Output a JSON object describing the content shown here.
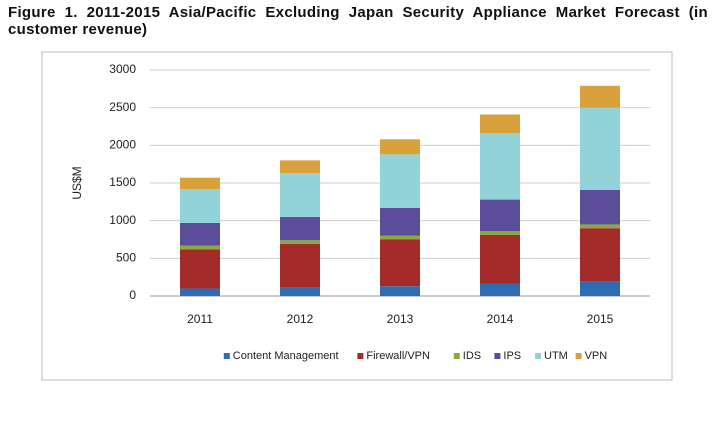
{
  "chart_data": {
    "type": "stacked_bar",
    "title": "Figure 1. 2011-2015 Asia/Pacific Excluding Japan Security Appliance Market Forecast (in customer revenue)",
    "y_label": "US$M",
    "categories": [
      "2011",
      "2012",
      "2013",
      "2014",
      "2015"
    ],
    "series": [
      {
        "name": "Content Management",
        "color": "#2f6db3",
        "values": [
          100,
          110,
          130,
          160,
          190
        ]
      },
      {
        "name": "Firewall/VPN",
        "color": "#a52a2a",
        "values": [
          520,
          580,
          620,
          650,
          710
        ]
      },
      {
        "name": "IDS",
        "color": "#8aab3c",
        "values": [
          50,
          50,
          50,
          50,
          50
        ]
      },
      {
        "name": "IPS",
        "color": "#5c4d9a",
        "values": [
          300,
          310,
          370,
          420,
          460
        ]
      },
      {
        "name": "UTM",
        "color": "#92d3d9",
        "values": [
          450,
          580,
          710,
          880,
          1090
        ]
      },
      {
        "name": "VPN",
        "color": "#d9a13c",
        "values": [
          150,
          170,
          200,
          250,
          290
        ]
      }
    ],
    "ylim": [
      0,
      3000
    ],
    "yticks": [
      0,
      500,
      1000,
      1500,
      2000,
      2500,
      3000
    ],
    "grid": true,
    "legend": "bottom"
  }
}
